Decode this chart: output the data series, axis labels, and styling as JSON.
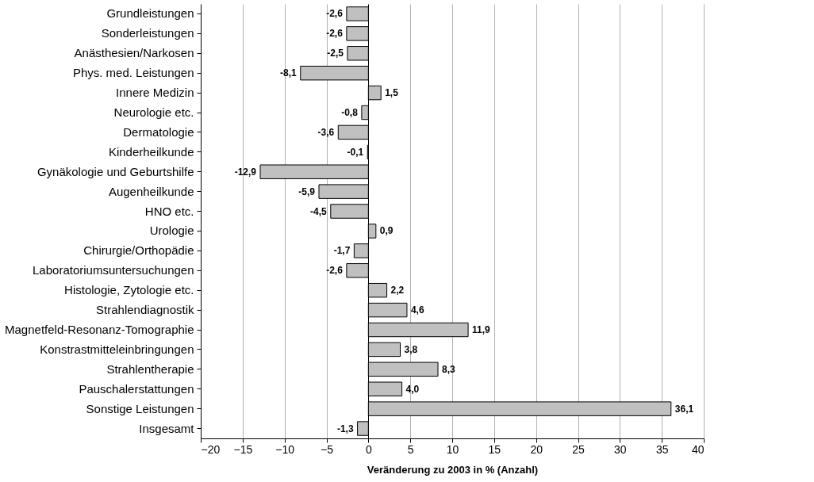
{
  "chart_data": {
    "type": "bar",
    "orientation": "horizontal",
    "xlabel": "Veränderung zu 2003 in % (Anzahl)",
    "categories": [
      "Grundleistungen",
      "Sonderleistungen",
      "Anästhesien/Narkosen",
      "Phys. med. Leistungen",
      "Innere Medizin",
      "Neurologie etc.",
      "Dermatologie",
      "Kinderheilkunde",
      "Gynäkologie und Geburtshilfe",
      "Augenheilkunde",
      "HNO etc.",
      "Urologie",
      "Chirurgie/Orthopädie",
      "Laboratoriumsuntersuchungen",
      "Histologie, Zytologie etc.",
      "Strahlendiagnostik",
      "Magnetfeld-Resonanz-Tomographie",
      "Konstrastmitteleinbringungen",
      "Strahlentherapie",
      "Pauschalerstattungen",
      "Sonstige Leistungen",
      "Insgesamt"
    ],
    "values": [
      -2.6,
      -2.6,
      -2.5,
      -8.1,
      1.5,
      -0.8,
      -3.6,
      -0.1,
      -12.9,
      -5.9,
      -4.5,
      0.9,
      -1.7,
      -2.6,
      2.2,
      4.6,
      11.9,
      3.8,
      8.3,
      4.0,
      36.1,
      -1.3
    ],
    "value_labels": [
      "-2,6",
      "-2,6",
      "-2,5",
      "-8,1",
      "1,5",
      "-0,8",
      "-3,6",
      "-0,1",
      "-12,9",
      "-5,9",
      "-4,5",
      "0,9",
      "-1,7",
      "-2,6",
      "2,2",
      "4,6",
      "11,9",
      "3,8",
      "8,3",
      "4,0",
      "36,1",
      "-1,3"
    ],
    "color": "#c0c0c0",
    "xlim": [
      -20,
      40
    ],
    "xticks": [
      -20,
      -15,
      -10,
      -5,
      0,
      5,
      10,
      15,
      20,
      25,
      30,
      35,
      40
    ],
    "grid": "x"
  }
}
